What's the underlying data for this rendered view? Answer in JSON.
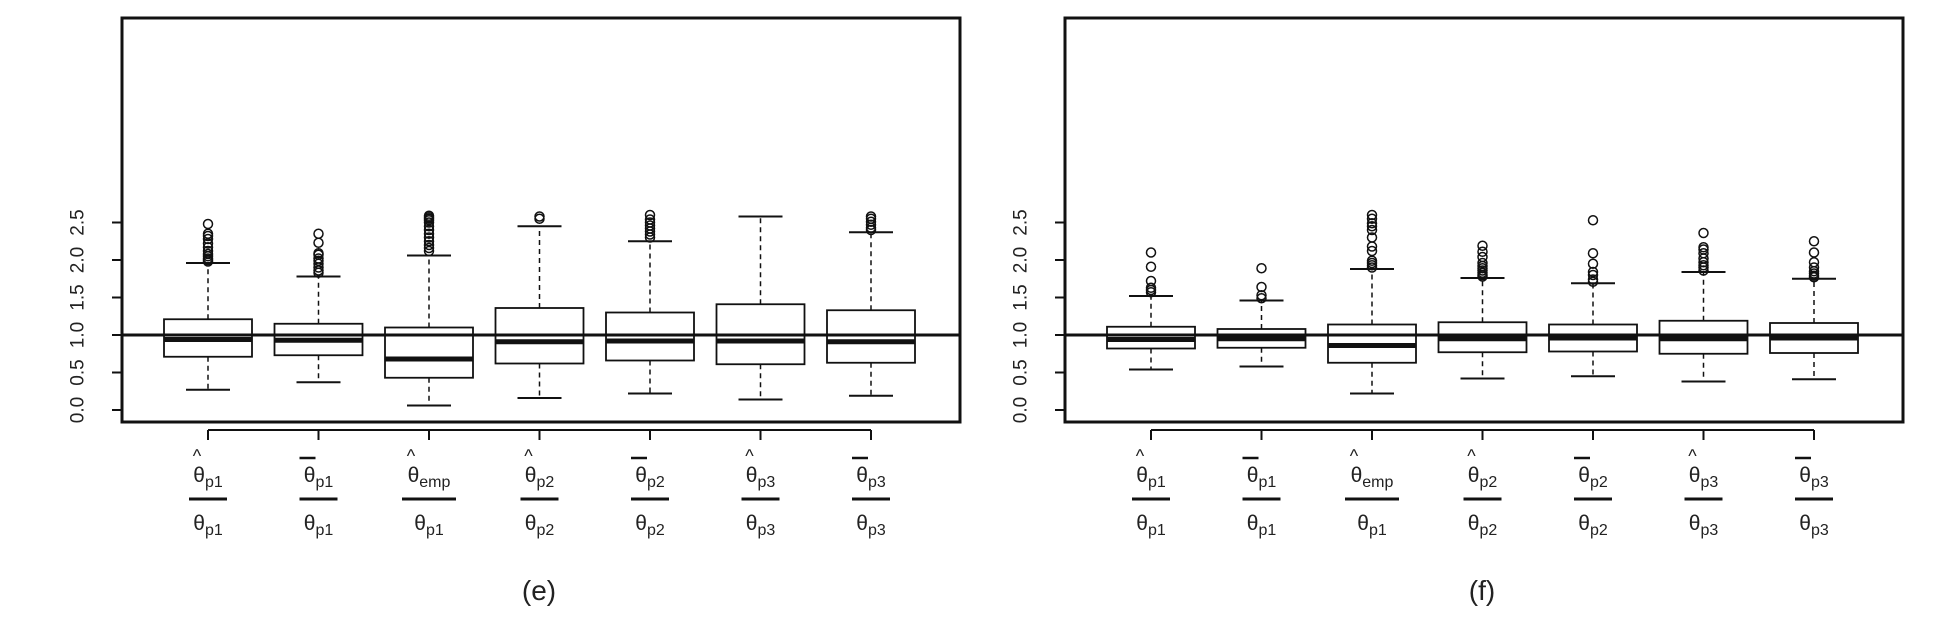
{
  "chart_data": [
    {
      "type": "box",
      "title": "",
      "caption": "(e)",
      "xlabel": "",
      "ylabel": "",
      "ylim": [
        0.0,
        2.5
      ],
      "yticks": [
        "0.0",
        "0.5",
        "1.0",
        "1.5",
        "2.0",
        "2.5"
      ],
      "reference_line": 1.0,
      "grid": false,
      "legend": "none",
      "categories": [
        {
          "num_base": "θ",
          "num_sub": "p1",
          "num_accent": "hat",
          "den_base": "θ",
          "den_sub": "p1"
        },
        {
          "num_base": "θ",
          "num_sub": "p1",
          "num_accent": "bar",
          "den_base": "θ",
          "den_sub": "p1"
        },
        {
          "num_base": "θ",
          "num_sub": "emp",
          "num_accent": "hat",
          "den_base": "θ",
          "den_sub": "p1"
        },
        {
          "num_base": "θ",
          "num_sub": "p2",
          "num_accent": "hat",
          "den_base": "θ",
          "den_sub": "p2"
        },
        {
          "num_base": "θ",
          "num_sub": "p2",
          "num_accent": "bar",
          "den_base": "θ",
          "den_sub": "p2"
        },
        {
          "num_base": "θ",
          "num_sub": "p3",
          "num_accent": "hat",
          "den_base": "θ",
          "den_sub": "p3"
        },
        {
          "num_base": "θ",
          "num_sub": "p3",
          "num_accent": "bar",
          "den_base": "θ",
          "den_sub": "p3"
        }
      ],
      "boxes": [
        {
          "whisker_low": 0.27,
          "q1": 0.71,
          "median": 0.94,
          "q3": 1.21,
          "whisker_high": 1.96,
          "outliers": [
            1.98,
            2.0,
            2.02,
            2.05,
            2.08,
            2.12,
            2.17,
            2.22,
            2.28,
            2.32,
            2.35,
            2.48
          ]
        },
        {
          "whisker_low": 0.37,
          "q1": 0.73,
          "median": 0.93,
          "q3": 1.15,
          "whisker_high": 1.78,
          "outliers": [
            1.83,
            1.86,
            1.9,
            1.95,
            1.99,
            2.02,
            2.07,
            2.09,
            2.23,
            2.35
          ]
        },
        {
          "whisker_low": 0.06,
          "q1": 0.43,
          "median": 0.68,
          "q3": 1.1,
          "whisker_high": 2.06,
          "outliers": [
            2.12,
            2.16,
            2.2,
            2.25,
            2.3,
            2.35,
            2.4,
            2.45,
            2.5,
            2.53,
            2.55,
            2.57,
            2.59
          ]
        },
        {
          "whisker_low": 0.16,
          "q1": 0.62,
          "median": 0.91,
          "q3": 1.36,
          "whisker_high": 2.45,
          "outliers": [
            2.55,
            2.58
          ]
        },
        {
          "whisker_low": 0.22,
          "q1": 0.66,
          "median": 0.92,
          "q3": 1.3,
          "whisker_high": 2.25,
          "outliers": [
            2.3,
            2.34,
            2.38,
            2.42,
            2.46,
            2.5,
            2.54,
            2.6
          ]
        },
        {
          "whisker_low": 0.14,
          "q1": 0.61,
          "median": 0.92,
          "q3": 1.41,
          "whisker_high": 2.58,
          "outliers": []
        },
        {
          "whisker_low": 0.19,
          "q1": 0.63,
          "median": 0.91,
          "q3": 1.33,
          "whisker_high": 2.37,
          "outliers": [
            2.4,
            2.43,
            2.47,
            2.51,
            2.55,
            2.58
          ]
        }
      ]
    },
    {
      "type": "box",
      "title": "",
      "caption": "(f)",
      "xlabel": "",
      "ylabel": "",
      "ylim": [
        0.0,
        2.5
      ],
      "yticks": [
        "0.0",
        "0.5",
        "1.0",
        "1.5",
        "2.0",
        "2.5"
      ],
      "reference_line": 1.0,
      "grid": false,
      "legend": "none",
      "categories": [
        {
          "num_base": "θ",
          "num_sub": "p1",
          "num_accent": "hat",
          "den_base": "θ",
          "den_sub": "p1"
        },
        {
          "num_base": "θ",
          "num_sub": "p1",
          "num_accent": "bar",
          "den_base": "θ",
          "den_sub": "p1"
        },
        {
          "num_base": "θ",
          "num_sub": "emp",
          "num_accent": "hat",
          "den_base": "θ",
          "den_sub": "p1"
        },
        {
          "num_base": "θ",
          "num_sub": "p2",
          "num_accent": "hat",
          "den_base": "θ",
          "den_sub": "p2"
        },
        {
          "num_base": "θ",
          "num_sub": "p2",
          "num_accent": "bar",
          "den_base": "θ",
          "den_sub": "p2"
        },
        {
          "num_base": "θ",
          "num_sub": "p3",
          "num_accent": "hat",
          "den_base": "θ",
          "den_sub": "p3"
        },
        {
          "num_base": "θ",
          "num_sub": "p3",
          "num_accent": "bar",
          "den_base": "θ",
          "den_sub": "p3"
        }
      ],
      "boxes": [
        {
          "whisker_low": 0.54,
          "q1": 0.82,
          "median": 0.94,
          "q3": 1.11,
          "whisker_high": 1.52,
          "outliers": [
            1.57,
            1.6,
            1.63,
            1.72,
            1.91,
            2.1
          ]
        },
        {
          "whisker_low": 0.58,
          "q1": 0.83,
          "median": 0.95,
          "q3": 1.08,
          "whisker_high": 1.46,
          "outliers": [
            1.49,
            1.53,
            1.64,
            1.89
          ]
        },
        {
          "whisker_low": 0.22,
          "q1": 0.63,
          "median": 0.86,
          "q3": 1.14,
          "whisker_high": 1.88,
          "outliers": [
            1.9,
            1.93,
            1.96,
            1.99,
            2.12,
            2.18,
            2.3,
            2.4,
            2.45,
            2.49,
            2.55,
            2.6
          ]
        },
        {
          "whisker_low": 0.42,
          "q1": 0.77,
          "median": 0.95,
          "q3": 1.17,
          "whisker_high": 1.76,
          "outliers": [
            1.78,
            1.8,
            1.83,
            1.86,
            1.89,
            1.92,
            1.96,
            2.04,
            2.11,
            2.19
          ]
        },
        {
          "whisker_low": 0.45,
          "q1": 0.78,
          "median": 0.96,
          "q3": 1.14,
          "whisker_high": 1.69,
          "outliers": [
            1.71,
            1.74,
            1.8,
            1.84,
            1.95,
            2.09,
            2.53
          ]
        },
        {
          "whisker_low": 0.38,
          "q1": 0.75,
          "median": 0.95,
          "q3": 1.19,
          "whisker_high": 1.84,
          "outliers": [
            1.86,
            1.9,
            1.93,
            1.97,
            2.02,
            2.09,
            2.14,
            2.17,
            2.36
          ]
        },
        {
          "whisker_low": 0.41,
          "q1": 0.76,
          "median": 0.96,
          "q3": 1.16,
          "whisker_high": 1.75,
          "outliers": [
            1.77,
            1.79,
            1.82,
            1.85,
            1.9,
            1.97,
            2.1,
            2.25
          ]
        }
      ]
    }
  ]
}
